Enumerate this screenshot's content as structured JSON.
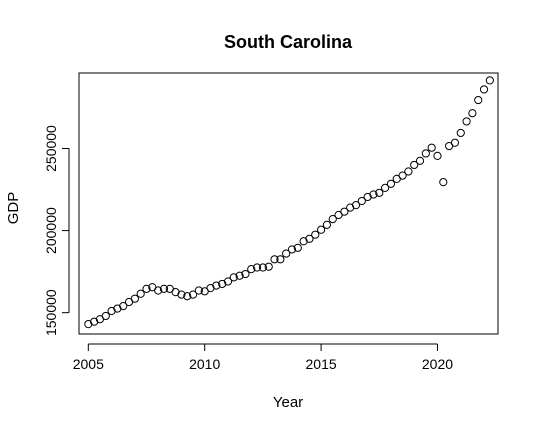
{
  "chart_data": {
    "type": "scatter",
    "title": "South Carolina",
    "xlabel": "Year",
    "ylabel": "GDP",
    "xlim": [
      2004.6,
      2022.6
    ],
    "ylim": [
      137000,
      296000
    ],
    "xticks": [
      2005,
      2010,
      2015,
      2020
    ],
    "xtick_labels": [
      "2005",
      "2010",
      "2015",
      "2020"
    ],
    "yticks": [
      150000,
      200000,
      250000
    ],
    "ytick_labels": [
      "150000",
      "200000",
      "250000"
    ],
    "grid": false,
    "legend": "none",
    "marker": "open-circle",
    "x": [
      2005.0,
      2005.25,
      2005.5,
      2005.75,
      2006.0,
      2006.25,
      2006.5,
      2006.75,
      2007.0,
      2007.25,
      2007.5,
      2007.75,
      2008.0,
      2008.25,
      2008.5,
      2008.75,
      2009.0,
      2009.25,
      2009.5,
      2009.75,
      2010.0,
      2010.25,
      2010.5,
      2010.75,
      2011.0,
      2011.25,
      2011.5,
      2011.75,
      2012.0,
      2012.25,
      2012.5,
      2012.75,
      2013.0,
      2013.25,
      2013.5,
      2013.75,
      2014.0,
      2014.25,
      2014.5,
      2014.75,
      2015.0,
      2015.25,
      2015.5,
      2015.75,
      2016.0,
      2016.25,
      2016.5,
      2016.75,
      2017.0,
      2017.25,
      2017.5,
      2017.75,
      2018.0,
      2018.25,
      2018.5,
      2018.75,
      2019.0,
      2019.25,
      2019.5,
      2019.75,
      2020.0,
      2020.25,
      2020.5,
      2020.75,
      2021.0,
      2021.25,
      2021.5,
      2021.75,
      2022.0,
      2022.25
    ],
    "y": [
      143000,
      144500,
      146000,
      148000,
      151000,
      152500,
      154000,
      156500,
      158500,
      161500,
      164500,
      165500,
      163500,
      164500,
      164500,
      162500,
      161000,
      160000,
      161000,
      163500,
      163000,
      165000,
      166500,
      167500,
      169000,
      171500,
      172500,
      173500,
      176500,
      177500,
      177500,
      178000,
      182500,
      182500,
      186000,
      188500,
      189500,
      193500,
      195000,
      197500,
      200500,
      203500,
      207000,
      209500,
      211500,
      214000,
      215500,
      218000,
      220500,
      222000,
      223000,
      226000,
      228500,
      231500,
      233500,
      236000,
      240000,
      242500,
      247000,
      250500,
      245500,
      229500,
      251500,
      253500,
      259500,
      266500,
      271500,
      279500,
      286000,
      291500
    ]
  }
}
